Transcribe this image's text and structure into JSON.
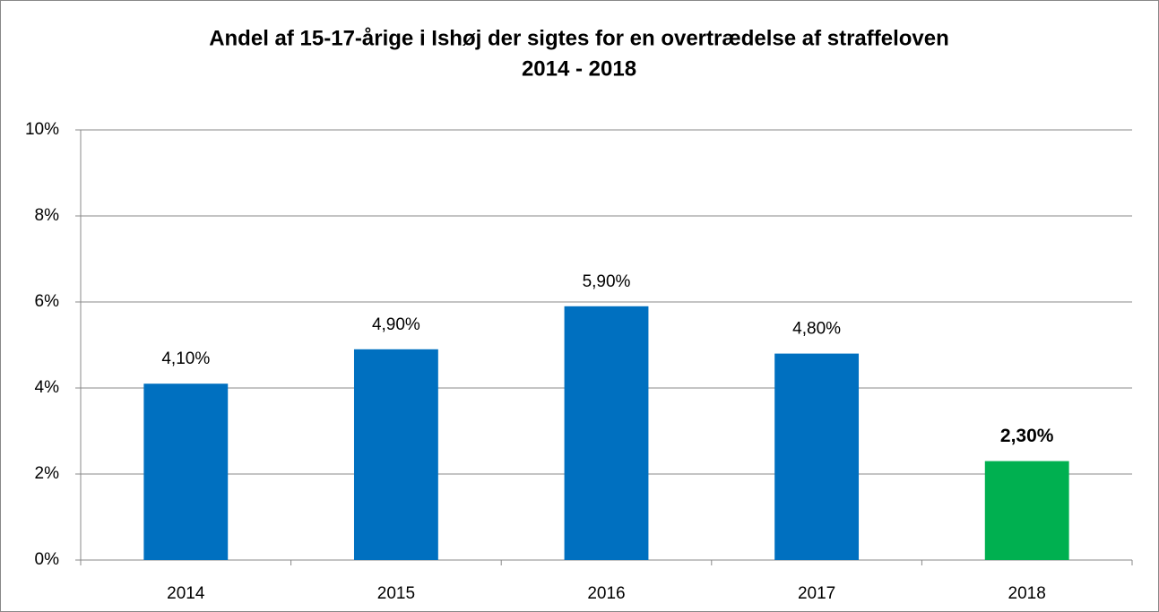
{
  "chart_data": {
    "type": "bar",
    "title": "Andel af 15-17-årige i Ishøj der sigtes for en overtrædelse af straffeloven",
    "subtitle": "2014 - 2018",
    "categories": [
      "2014",
      "2015",
      "2016",
      "2017",
      "2018"
    ],
    "values": [
      4.1,
      4.9,
      5.9,
      4.8,
      2.3
    ],
    "value_labels": [
      "4,10%",
      "4,90%",
      "5,90%",
      "4,80%",
      "2,30%"
    ],
    "value_label_bold": [
      false,
      false,
      false,
      false,
      true
    ],
    "colors": [
      "#0070c0",
      "#0070c0",
      "#0070c0",
      "#0070c0",
      "#00b050"
    ],
    "ylim": [
      0,
      10
    ],
    "yticks": [
      {
        "value": 0,
        "label": "0%"
      },
      {
        "value": 2,
        "label": "2%"
      },
      {
        "value": 4,
        "label": "4%"
      },
      {
        "value": 6,
        "label": "6%"
      },
      {
        "value": 8,
        "label": "8%"
      },
      {
        "value": 10,
        "label": "10%"
      }
    ],
    "grid": true
  }
}
